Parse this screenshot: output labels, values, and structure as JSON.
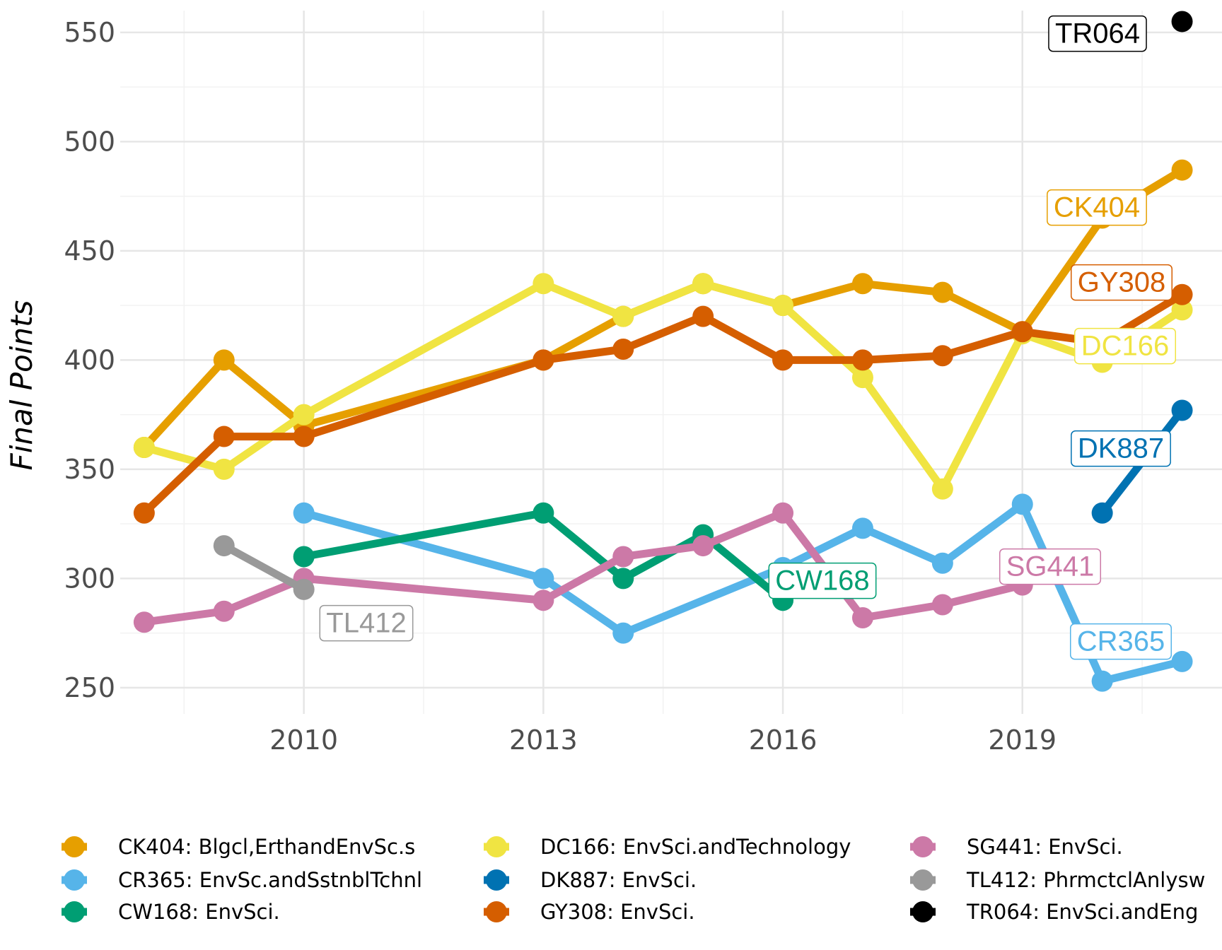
{
  "chart_data": {
    "type": "line",
    "title": "",
    "xlabel": "",
    "ylabel": "Final Points",
    "xlim": [
      2007.7,
      2021.5
    ],
    "ylim": [
      238,
      560
    ],
    "x_ticks": [
      2010,
      2013,
      2016,
      2019
    ],
    "x_tick_labels": [
      "2010",
      "2013",
      "2016",
      "2019"
    ],
    "y_ticks": [
      250,
      300,
      350,
      400,
      450,
      500,
      550
    ],
    "y_tick_labels": [
      "250",
      "300",
      "350",
      "400",
      "450",
      "500",
      "550"
    ],
    "grid": true,
    "legend_position": "bottom",
    "series": [
      {
        "id": "CK404",
        "name": "CK404: Blgcl,ErthandEnvSc.s",
        "label": "CK404",
        "color": "#E69F00",
        "points": [
          [
            2008,
            360
          ],
          [
            2009,
            400
          ],
          [
            2010,
            370
          ],
          [
            2013,
            400
          ],
          [
            2014,
            420
          ],
          [
            2015,
            435
          ],
          [
            2016,
            425
          ],
          [
            2017,
            435
          ],
          [
            2018,
            431
          ],
          [
            2019,
            413
          ],
          [
            2020,
            465
          ],
          [
            2021,
            487
          ]
        ]
      },
      {
        "id": "CR365",
        "name": "CR365: EnvSc.andSstnblTchnl",
        "label": "CR365",
        "color": "#56B4E9",
        "points": [
          [
            2010,
            330
          ],
          [
            2013,
            300
          ],
          [
            2014,
            275
          ],
          [
            2016,
            305
          ],
          [
            2017,
            323
          ],
          [
            2018,
            307
          ],
          [
            2019,
            334
          ],
          [
            2020,
            253
          ],
          [
            2021,
            262
          ]
        ]
      },
      {
        "id": "CW168",
        "name": "CW168: EnvSci.",
        "label": "CW168",
        "color": "#009E73",
        "points": [
          [
            2010,
            310
          ],
          [
            2013,
            330
          ],
          [
            2014,
            300
          ],
          [
            2015,
            320
          ],
          [
            2016,
            290
          ]
        ]
      },
      {
        "id": "DC166",
        "name": "DC166: EnvSci.andTechnology",
        "label": "DC166",
        "color": "#F0E442",
        "points": [
          [
            2008,
            360
          ],
          [
            2009,
            350
          ],
          [
            2010,
            375
          ],
          [
            2013,
            435
          ],
          [
            2014,
            420
          ],
          [
            2015,
            435
          ],
          [
            2016,
            425
          ],
          [
            2017,
            392
          ],
          [
            2018,
            341
          ],
          [
            2019,
            412
          ],
          [
            2020,
            399
          ],
          [
            2021,
            423
          ]
        ]
      },
      {
        "id": "DK887",
        "name": "DK887: EnvSci.",
        "label": "DK887",
        "color": "#0072B2",
        "points": [
          [
            2020,
            330
          ],
          [
            2021,
            377
          ]
        ]
      },
      {
        "id": "GY308",
        "name": "GY308: EnvSci.",
        "label": "GY308",
        "color": "#D55E00",
        "points": [
          [
            2008,
            330
          ],
          [
            2009,
            365
          ],
          [
            2010,
            365
          ],
          [
            2013,
            400
          ],
          [
            2014,
            405
          ],
          [
            2015,
            420
          ],
          [
            2016,
            400
          ],
          [
            2017,
            400
          ],
          [
            2018,
            402
          ],
          [
            2019,
            413
          ],
          [
            2020,
            408
          ],
          [
            2021,
            430
          ]
        ]
      },
      {
        "id": "SG441",
        "name": "SG441: EnvSci.",
        "label": "SG441",
        "color": "#CC79A7",
        "points": [
          [
            2008,
            280
          ],
          [
            2009,
            285
          ],
          [
            2010,
            300
          ],
          [
            2013,
            290
          ],
          [
            2014,
            310
          ],
          [
            2015,
            315
          ],
          [
            2016,
            330
          ],
          [
            2017,
            282
          ],
          [
            2018,
            288
          ],
          [
            2019,
            297
          ]
        ]
      },
      {
        "id": "TL412",
        "name": "TL412: PhrmctclAnlysw",
        "label": "TL412",
        "color": "#999999",
        "points": [
          [
            2009,
            315
          ],
          [
            2010,
            295
          ]
        ]
      },
      {
        "id": "TR064",
        "name": "TR064: EnvSci.andEng",
        "label": "TR064",
        "color": "#000000",
        "points": [
          [
            2021,
            555
          ]
        ]
      }
    ]
  }
}
